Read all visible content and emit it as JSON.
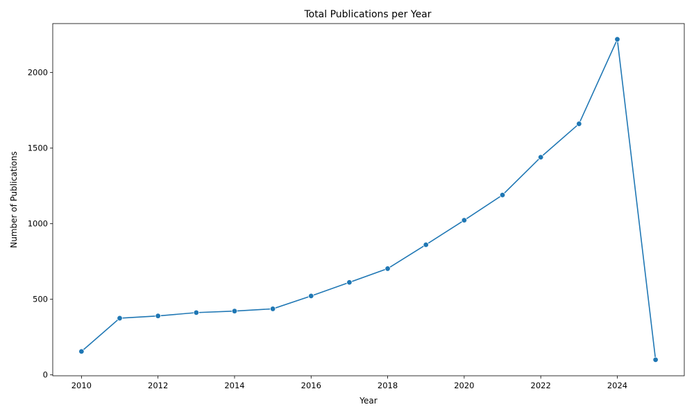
{
  "chart_data": {
    "type": "line",
    "title": "Total Publications per Year",
    "xlabel": "Year",
    "ylabel": "Number of Publications",
    "x": [
      2010,
      2011,
      2012,
      2013,
      2014,
      2015,
      2016,
      2017,
      2018,
      2019,
      2020,
      2021,
      2022,
      2023,
      2024,
      2025
    ],
    "series": [
      {
        "values": [
          155,
          375,
          390,
          412,
          422,
          437,
          522,
          612,
          703,
          861,
          1023,
          1190,
          1440,
          1661,
          2220,
          100
        ],
        "color": "#1f77b4",
        "marker": "circle"
      }
    ],
    "xlim": [
      2009.25,
      2025.75
    ],
    "ylim": [
      -6,
      2324
    ],
    "xticks": [
      2010,
      2012,
      2014,
      2016,
      2018,
      2020,
      2022,
      2024
    ],
    "yticks": [
      0,
      500,
      1000,
      1500,
      2000
    ],
    "grid": false,
    "legend": "none"
  }
}
